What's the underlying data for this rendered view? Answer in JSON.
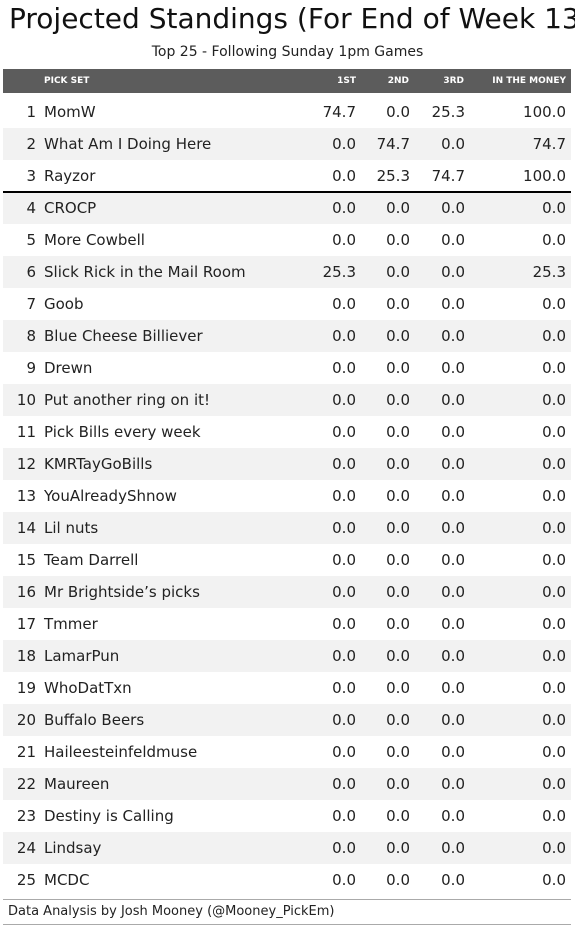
{
  "title": "Projected Standings (For End of Week 13)",
  "subtitle": "Top 25 - Following Sunday 1pm Games",
  "columns": {
    "pick_set": "PICK SET",
    "first": "1ST",
    "second": "2ND",
    "third": "3RD",
    "money": "IN THE MONEY"
  },
  "rows": [
    {
      "rank": "1",
      "name": "MomW",
      "first": "74.7",
      "second": "0.0",
      "third": "25.3",
      "money": "100.0"
    },
    {
      "rank": "2",
      "name": "What Am I Doing Here",
      "first": "0.0",
      "second": "74.7",
      "third": "0.0",
      "money": "74.7"
    },
    {
      "rank": "3",
      "name": "Rayzor",
      "first": "0.0",
      "second": "25.3",
      "third": "74.7",
      "money": "100.0"
    },
    {
      "rank": "4",
      "name": "CROCP",
      "first": "0.0",
      "second": "0.0",
      "third": "0.0",
      "money": "0.0"
    },
    {
      "rank": "5",
      "name": "More Cowbell",
      "first": "0.0",
      "second": "0.0",
      "third": "0.0",
      "money": "0.0"
    },
    {
      "rank": "6",
      "name": "Slick Rick in the Mail Room",
      "first": "25.3",
      "second": "0.0",
      "third": "0.0",
      "money": "25.3"
    },
    {
      "rank": "7",
      "name": "Goob",
      "first": "0.0",
      "second": "0.0",
      "third": "0.0",
      "money": "0.0"
    },
    {
      "rank": "8",
      "name": "Blue Cheese Billiever",
      "first": "0.0",
      "second": "0.0",
      "third": "0.0",
      "money": "0.0"
    },
    {
      "rank": "9",
      "name": "Drewn",
      "first": "0.0",
      "second": "0.0",
      "third": "0.0",
      "money": "0.0"
    },
    {
      "rank": "10",
      "name": "Put another ring on it!",
      "first": "0.0",
      "second": "0.0",
      "third": "0.0",
      "money": "0.0"
    },
    {
      "rank": "11",
      "name": "Pick Bills every week",
      "first": "0.0",
      "second": "0.0",
      "third": "0.0",
      "money": "0.0"
    },
    {
      "rank": "12",
      "name": "KMRTayGoBills",
      "first": "0.0",
      "second": "0.0",
      "third": "0.0",
      "money": "0.0"
    },
    {
      "rank": "13",
      "name": "YouAlreadyShnow",
      "first": "0.0",
      "second": "0.0",
      "third": "0.0",
      "money": "0.0"
    },
    {
      "rank": "14",
      "name": "Lil nuts",
      "first": "0.0",
      "second": "0.0",
      "third": "0.0",
      "money": "0.0"
    },
    {
      "rank": "15",
      "name": "Team Darrell",
      "first": "0.0",
      "second": "0.0",
      "third": "0.0",
      "money": "0.0"
    },
    {
      "rank": "16",
      "name": "Mr Brightside’s picks",
      "first": "0.0",
      "second": "0.0",
      "third": "0.0",
      "money": "0.0"
    },
    {
      "rank": "17",
      "name": "Tmmer",
      "first": "0.0",
      "second": "0.0",
      "third": "0.0",
      "money": "0.0"
    },
    {
      "rank": "18",
      "name": "LamarPun",
      "first": "0.0",
      "second": "0.0",
      "third": "0.0",
      "money": "0.0"
    },
    {
      "rank": "19",
      "name": "WhoDatTxn",
      "first": "0.0",
      "second": "0.0",
      "third": "0.0",
      "money": "0.0"
    },
    {
      "rank": "20",
      "name": "Buffalo Beers",
      "first": "0.0",
      "second": "0.0",
      "third": "0.0",
      "money": "0.0"
    },
    {
      "rank": "21",
      "name": "Haileesteinfeldmuse",
      "first": "0.0",
      "second": "0.0",
      "third": "0.0",
      "money": "0.0"
    },
    {
      "rank": "22",
      "name": "Maureen",
      "first": "0.0",
      "second": "0.0",
      "third": "0.0",
      "money": "0.0"
    },
    {
      "rank": "23",
      "name": "Destiny is Calling",
      "first": "0.0",
      "second": "0.0",
      "third": "0.0",
      "money": "0.0"
    },
    {
      "rank": "24",
      "name": "Lindsay",
      "first": "0.0",
      "second": "0.0",
      "third": "0.0",
      "money": "0.0"
    },
    {
      "rank": "25",
      "name": "MCDC",
      "first": "0.0",
      "second": "0.0",
      "third": "0.0",
      "money": "0.0"
    }
  ],
  "footer": "Data Analysis by Josh Mooney (@Mooney_PickEm)",
  "colors": {
    "header_bg": "#5c5c5c",
    "row_alt_bg": "#f2f2f2"
  }
}
